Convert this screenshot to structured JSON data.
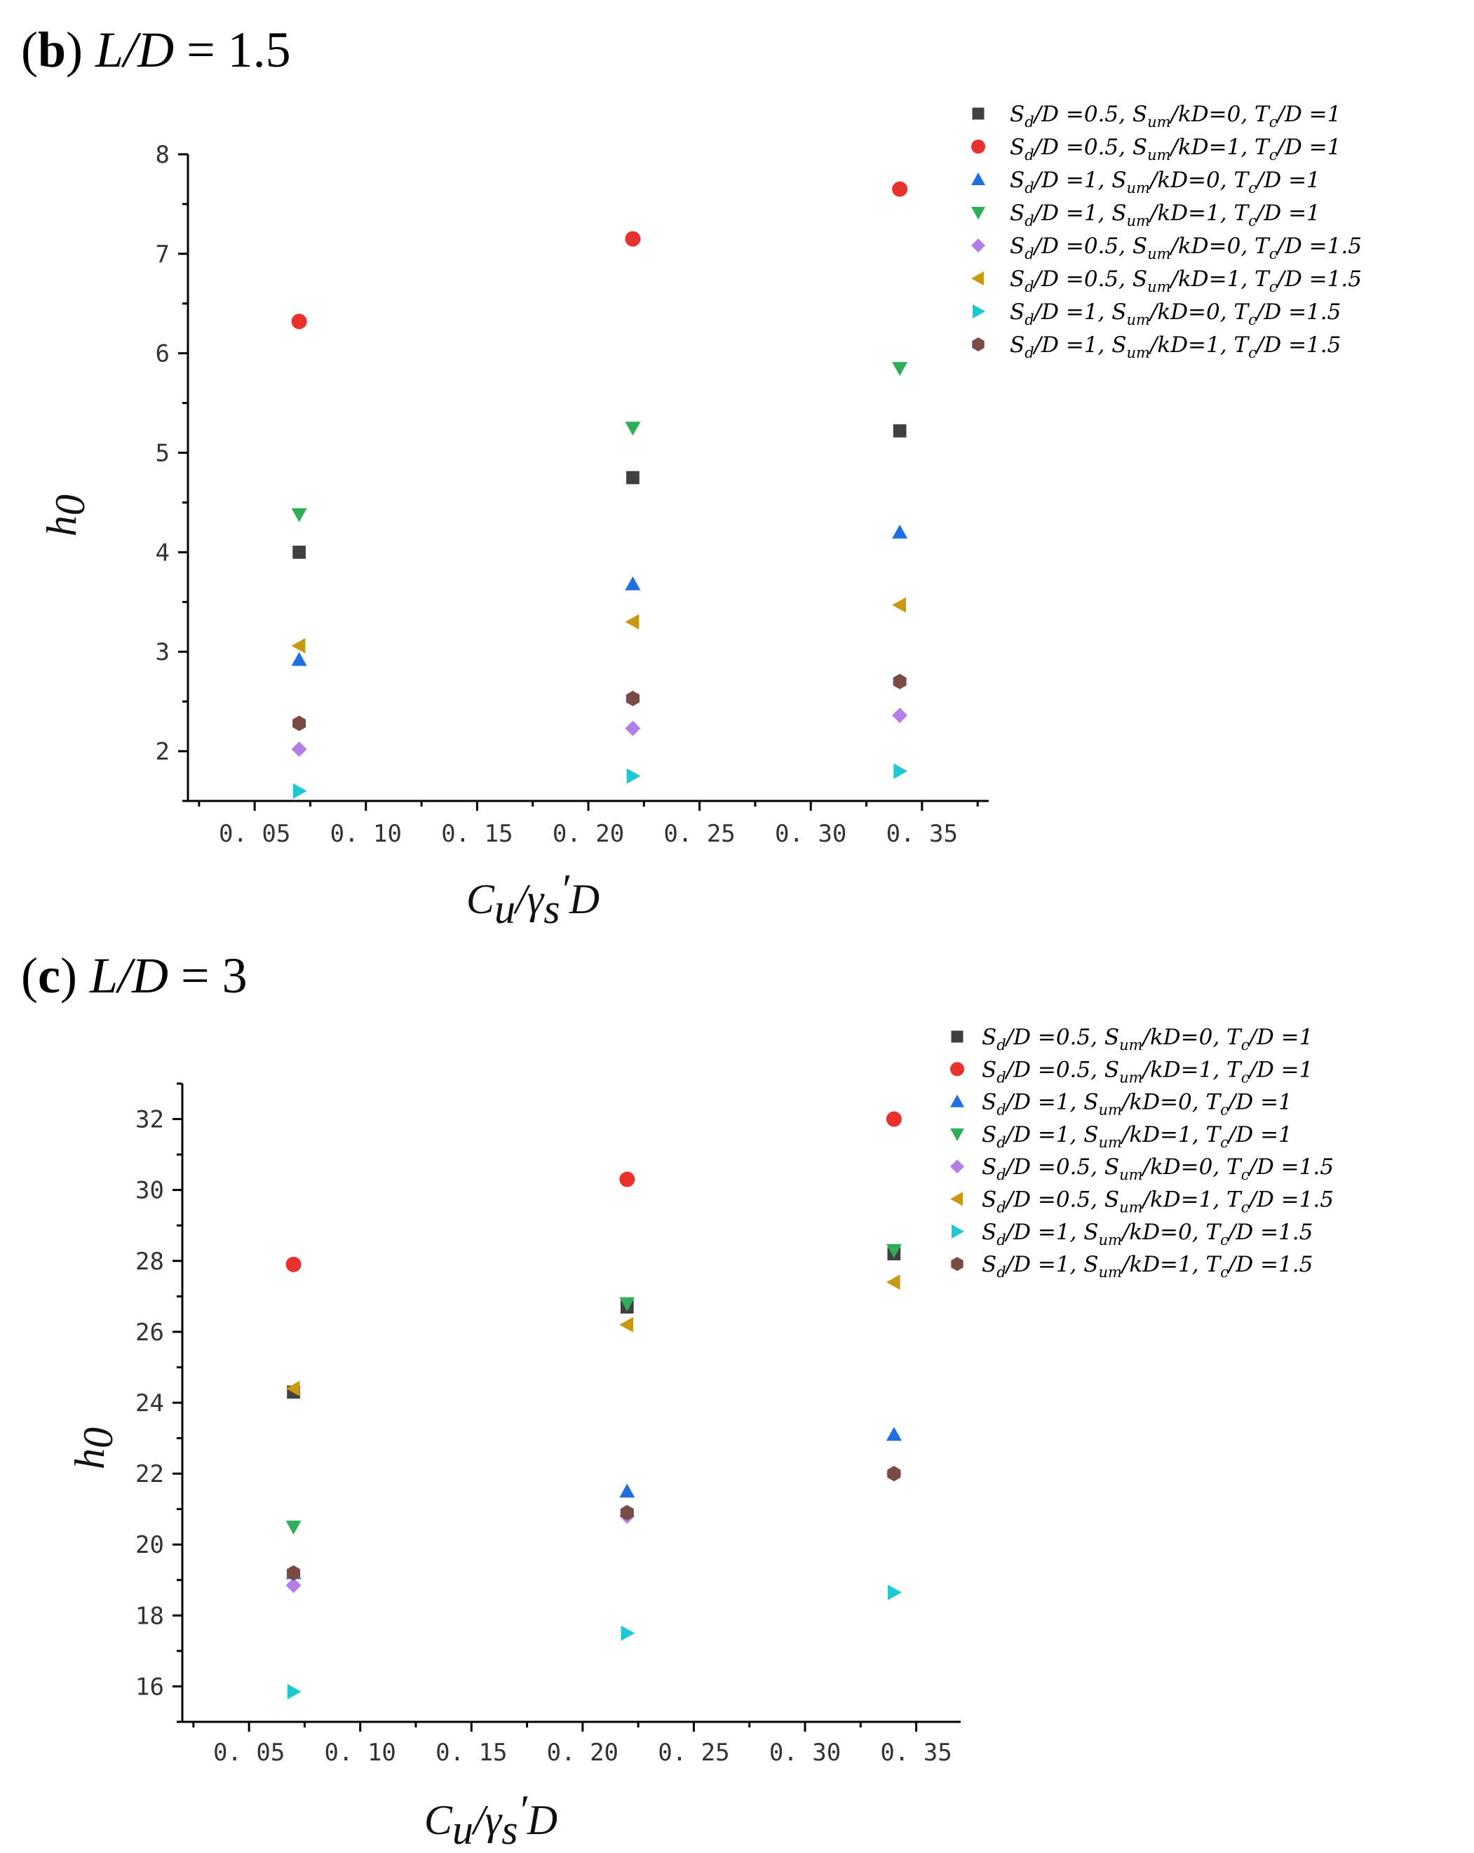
{
  "figure": {
    "symbols": {
      "square": "#404040",
      "circle": "#e8322d",
      "triangle-up": "#1f6fe0",
      "triangle-down": "#2fae5a",
      "diamond": "#b57ee6",
      "triangle-left": "#c89a12",
      "triangle-right": "#1ec8d2",
      "hexagon": "#7a4a45"
    }
  },
  "chart_data": [
    {
      "type": "scatter",
      "panel_label": "(b)",
      "title": "L/D = 1.5",
      "xlabel": "Cu/γs′D",
      "ylabel": "h0",
      "xlim": [
        0.02,
        0.38
      ],
      "ylim": [
        1.5,
        8
      ],
      "xticks": [
        "0.05",
        "0.10",
        "0.15",
        "0.20",
        "0.25",
        "0.30",
        "0.35"
      ],
      "yticks": [
        "2",
        "3",
        "4",
        "5",
        "6",
        "7",
        "8"
      ],
      "legend_position": "top-right",
      "x": [
        0.07,
        0.22,
        0.34
      ],
      "series": [
        {
          "name": "Sd/D =0.5, Sum/kD=0, Tc/D =1",
          "label": {
            "sd": "0.5",
            "sum": "0",
            "tc": "1"
          },
          "marker": "square",
          "color": "#404040",
          "values": [
            4.0,
            4.75,
            5.22
          ]
        },
        {
          "name": "Sd/D =0.5, Sum/kD=1, Tc/D =1",
          "label": {
            "sd": "0.5",
            "sum": "1",
            "tc": "1"
          },
          "marker": "circle",
          "color": "#e8322d",
          "values": [
            6.32,
            7.15,
            7.65
          ]
        },
        {
          "name": "Sd/D =1, Sum/kD=0, Tc/D =1",
          "label": {
            "sd": "1",
            "sum": "0",
            "tc": "1"
          },
          "marker": "triangle-up",
          "color": "#1f6fe0",
          "values": [
            2.92,
            3.68,
            4.2
          ]
        },
        {
          "name": "Sd/D =1, Sum/kD=1, Tc/D =1",
          "label": {
            "sd": "1",
            "sum": "1",
            "tc": "1"
          },
          "marker": "triangle-down",
          "color": "#2fae5a",
          "values": [
            4.38,
            5.25,
            5.85
          ]
        },
        {
          "name": "Sd/D =0.5, Sum/kD=0, Tc/D =1.5",
          "label": {
            "sd": "0.5",
            "sum": "0",
            "tc": "1.5"
          },
          "marker": "diamond",
          "color": "#b57ee6",
          "values": [
            2.02,
            2.23,
            2.36
          ]
        },
        {
          "name": "Sd/D =0.5, Sum/kD=1, Tc/D =1.5",
          "label": {
            "sd": "0.5",
            "sum": "1",
            "tc": "1.5"
          },
          "marker": "triangle-left",
          "color": "#c89a12",
          "values": [
            3.06,
            3.3,
            3.47
          ]
        },
        {
          "name": "Sd/D =1, Sum/kD=0, Tc/D =1.5",
          "label": {
            "sd": "1",
            "sum": "0",
            "tc": "1.5"
          },
          "marker": "triangle-right",
          "color": "#1ec8d2",
          "values": [
            1.6,
            1.75,
            1.8
          ]
        },
        {
          "name": "Sd/D =1, Sum/kD=1, Tc/D =1.5",
          "label": {
            "sd": "1",
            "sum": "1",
            "tc": "1.5"
          },
          "marker": "hexagon",
          "color": "#7a4a45",
          "values": [
            2.28,
            2.53,
            2.7
          ]
        }
      ]
    },
    {
      "type": "scatter",
      "panel_label": "(c)",
      "title": "L/D = 3",
      "xlabel": "Cu/γs′D",
      "ylabel": "h0",
      "xlim": [
        0.02,
        0.37
      ],
      "ylim": [
        15,
        33
      ],
      "xticks": [
        "0.05",
        "0.10",
        "0.15",
        "0.20",
        "0.25",
        "0.30",
        "0.35"
      ],
      "yticks": [
        "16",
        "18",
        "20",
        "22",
        "24",
        "26",
        "28",
        "30",
        "32"
      ],
      "legend_position": "top-right",
      "x": [
        0.07,
        0.22,
        0.34
      ],
      "series": [
        {
          "name": "Sd/D =0.5, Sum/kD=0, Tc/D =1",
          "label": {
            "sd": "0.5",
            "sum": "0",
            "tc": "1"
          },
          "marker": "square",
          "color": "#404040",
          "values": [
            24.3,
            26.7,
            28.2
          ]
        },
        {
          "name": "Sd/D =0.5, Sum/kD=1, Tc/D =1",
          "label": {
            "sd": "0.5",
            "sum": "1",
            "tc": "1"
          },
          "marker": "circle",
          "color": "#e8322d",
          "values": [
            27.9,
            30.3,
            32.0
          ]
        },
        {
          "name": "Sd/D =1, Sum/kD=0, Tc/D =1",
          "label": {
            "sd": "1",
            "sum": "0",
            "tc": "1"
          },
          "marker": "triangle-up",
          "color": "#1f6fe0",
          "values": [
            19.2,
            21.5,
            23.1
          ]
        },
        {
          "name": "Sd/D =1, Sum/kD=1, Tc/D =1",
          "label": {
            "sd": "1",
            "sum": "1",
            "tc": "1"
          },
          "marker": "triangle-down",
          "color": "#2fae5a",
          "values": [
            20.5,
            26.8,
            28.3
          ]
        },
        {
          "name": "Sd/D =0.5, Sum/kD=0, Tc/D =1.5",
          "label": {
            "sd": "0.5",
            "sum": "0",
            "tc": "1.5"
          },
          "marker": "diamond",
          "color": "#b57ee6",
          "values": [
            18.85,
            20.8,
            22.0
          ]
        },
        {
          "name": "Sd/D =0.5, Sum/kD=1, Tc/D =1.5",
          "label": {
            "sd": "0.5",
            "sum": "1",
            "tc": "1.5"
          },
          "marker": "triangle-left",
          "color": "#c89a12",
          "values": [
            24.4,
            26.2,
            27.4
          ]
        },
        {
          "name": "Sd/D =1, Sum/kD=0, Tc/D =1.5",
          "label": {
            "sd": "1",
            "sum": "0",
            "tc": "1.5"
          },
          "marker": "triangle-right",
          "color": "#1ec8d2",
          "values": [
            15.85,
            17.5,
            18.65
          ]
        },
        {
          "name": "Sd/D =1, Sum/kD=1, Tc/D =1.5",
          "label": {
            "sd": "1",
            "sum": "1",
            "tc": "1.5"
          },
          "marker": "hexagon",
          "color": "#7a4a45",
          "values": [
            19.2,
            20.9,
            22.0
          ]
        }
      ]
    }
  ]
}
